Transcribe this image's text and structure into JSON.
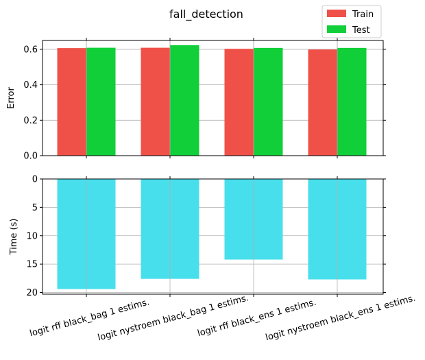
{
  "chart_data": [
    {
      "type": "bar",
      "title": "fall_detection",
      "ylabel": "Error",
      "ylim": [
        0,
        0.65
      ],
      "yticks": [
        0.0,
        0.2,
        0.4,
        0.6
      ],
      "ytick_labels": [
        "0.0",
        "0.2",
        "0.4",
        "0.6"
      ],
      "grid": true,
      "legend": "top-right",
      "categories": [
        "logit rff black_bag 1 estims.",
        "logit nystroem black_bag 1 estims.",
        "logit rff black_ens 1 estims.",
        "logit nystroem black_ens 1 estims."
      ],
      "series": [
        {
          "name": "Train",
          "color": "#ef5148",
          "values": [
            0.607,
            0.609,
            0.603,
            0.599
          ]
        },
        {
          "name": "Test",
          "color": "#10cf38",
          "values": [
            0.609,
            0.623,
            0.608,
            0.608
          ]
        }
      ]
    },
    {
      "type": "bar",
      "ylabel": "Time (s)",
      "ylim": [
        0,
        20.3
      ],
      "inverted_y": true,
      "yticks": [
        0,
        5,
        10,
        15,
        20
      ],
      "ytick_labels": [
        "0",
        "5",
        "10",
        "15",
        "20"
      ],
      "grid": true,
      "categories": [
        "logit rff black_bag 1 estims.",
        "logit nystroem black_bag 1 estims.",
        "logit rff black_ens 1 estims.",
        "logit nystroem black_ens 1 estims."
      ],
      "series": [
        {
          "name": "Time",
          "color": "#48dfec",
          "values": [
            19.4,
            17.6,
            14.2,
            17.7
          ]
        }
      ]
    }
  ]
}
